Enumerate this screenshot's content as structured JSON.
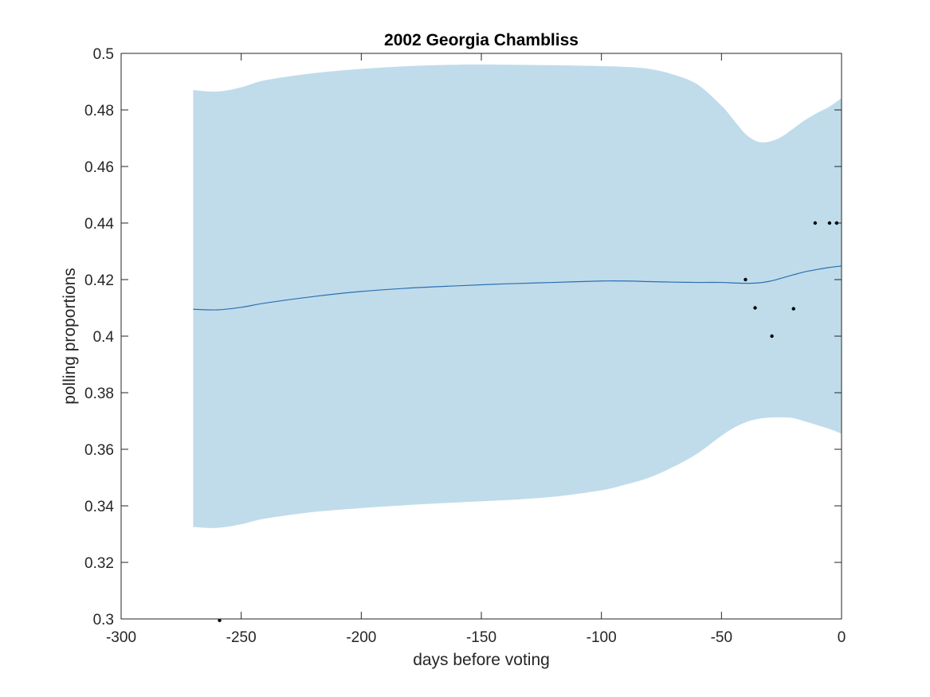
{
  "chart_data": {
    "type": "line",
    "title": "2002 Georgia Chambliss",
    "xlabel": "days before voting",
    "ylabel": "polling proportions",
    "xlim": [
      -300,
      0
    ],
    "ylim": [
      0.3,
      0.5
    ],
    "xticks": [
      -300,
      -250,
      -200,
      -150,
      -100,
      -50,
      0
    ],
    "yticks": [
      0.3,
      0.32,
      0.34,
      0.36,
      0.38,
      0.4,
      0.42,
      0.44,
      0.46,
      0.48,
      0.5
    ],
    "xtick_labels": [
      "-300",
      "-250",
      "-200",
      "-150",
      "-100",
      "-50",
      "0"
    ],
    "ytick_labels": [
      "0.3",
      "0.32",
      "0.34",
      "0.36",
      "0.38",
      "0.4",
      "0.42",
      "0.44",
      "0.46",
      "0.48",
      "0.5"
    ],
    "grid": false,
    "colors": {
      "band": "#c0dcea",
      "mean": "#2b6fb3",
      "points": "#000000",
      "axis": "#262626"
    },
    "band": {
      "x": [
        -270,
        -260,
        -250,
        -240,
        -220,
        -200,
        -180,
        -160,
        -140,
        -120,
        -100,
        -90,
        -80,
        -70,
        -60,
        -50,
        -45,
        -40,
        -35,
        -30,
        -25,
        -20,
        -15,
        -10,
        -5,
        0
      ],
      "upper": [
        0.487,
        0.4865,
        0.488,
        0.4905,
        0.493,
        0.4945,
        0.4955,
        0.496,
        0.496,
        0.4958,
        0.4955,
        0.4952,
        0.4945,
        0.4925,
        0.489,
        0.4815,
        0.4765,
        0.4715,
        0.4688,
        0.4688,
        0.4705,
        0.4735,
        0.4765,
        0.479,
        0.4812,
        0.4842
      ],
      "lower": [
        0.3325,
        0.3322,
        0.3335,
        0.3355,
        0.3378,
        0.3392,
        0.3403,
        0.3412,
        0.342,
        0.3432,
        0.3455,
        0.3475,
        0.35,
        0.3538,
        0.3585,
        0.3648,
        0.3675,
        0.3695,
        0.3707,
        0.3712,
        0.3713,
        0.371,
        0.3698,
        0.3685,
        0.3672,
        0.3655
      ]
    },
    "series": [
      {
        "x": [
          -270,
          -260,
          -250,
          -240,
          -220,
          -200,
          -180,
          -160,
          -140,
          -120,
          -100,
          -90,
          -80,
          -70,
          -60,
          -50,
          -45,
          -40,
          -35,
          -30,
          -25,
          -20,
          -15,
          -10,
          -5,
          0
        ],
        "values": [
          0.4095,
          0.4093,
          0.4102,
          0.4117,
          0.414,
          0.4158,
          0.417,
          0.4178,
          0.4185,
          0.419,
          0.4195,
          0.4195,
          0.4193,
          0.4191,
          0.419,
          0.419,
          0.4188,
          0.4187,
          0.4188,
          0.4194,
          0.4205,
          0.4217,
          0.4228,
          0.4236,
          0.4243,
          0.4248
        ]
      }
    ],
    "points": [
      {
        "x": -259,
        "y": 0.2995
      },
      {
        "x": -40,
        "y": 0.42
      },
      {
        "x": -36,
        "y": 0.41
      },
      {
        "x": -29,
        "y": 0.4
      },
      {
        "x": -20,
        "y": 0.4097
      },
      {
        "x": -11,
        "y": 0.44
      },
      {
        "x": -5,
        "y": 0.44
      },
      {
        "x": -2,
        "y": 0.44
      }
    ]
  }
}
